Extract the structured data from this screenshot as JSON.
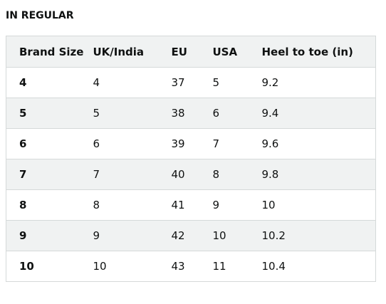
{
  "heading": "IN REGULAR",
  "table": {
    "headers": [
      "Brand Size",
      "UK/India",
      "EU",
      "USA",
      "Heel to toe (in)"
    ],
    "rows": [
      [
        "4",
        "4",
        "37",
        "5",
        "9.2"
      ],
      [
        "5",
        "5",
        "38",
        "6",
        "9.4"
      ],
      [
        "6",
        "6",
        "39",
        "7",
        "9.6"
      ],
      [
        "7",
        "7",
        "40",
        "8",
        "9.8"
      ],
      [
        "8",
        "8",
        "41",
        "9",
        "10"
      ],
      [
        "9",
        "9",
        "42",
        "10",
        "10.2"
      ],
      [
        "10",
        "10",
        "43",
        "11",
        "10.4"
      ]
    ]
  }
}
